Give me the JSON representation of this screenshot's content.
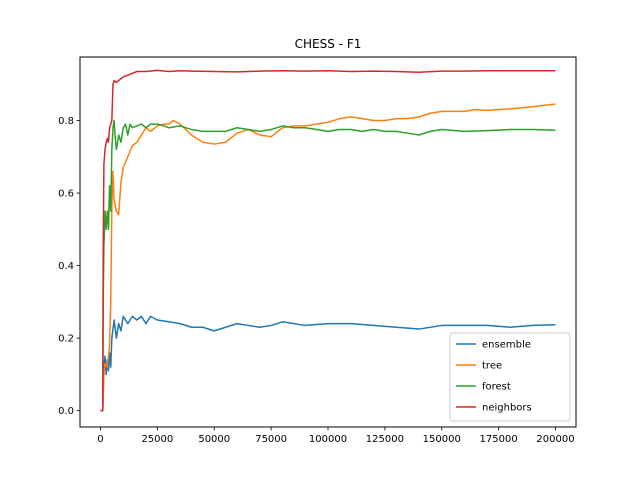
{
  "chart_data": {
    "type": "line",
    "title": "CHESS - F1",
    "xlabel": "",
    "ylabel": "",
    "xlim": [
      -9000,
      209000
    ],
    "ylim": [
      -0.045,
      0.975
    ],
    "xticks": [
      0,
      25000,
      50000,
      75000,
      100000,
      125000,
      150000,
      175000,
      200000
    ],
    "yticks": [
      0.0,
      0.2,
      0.4,
      0.6,
      0.8
    ],
    "ytick_labels": [
      "0.0",
      "0.2",
      "0.4",
      "0.6",
      "0.8"
    ],
    "grid": false,
    "legend_position": "lower-right",
    "series": [
      {
        "name": "ensemble",
        "color": "#1f77b4",
        "points": [
          [
            0,
            0.0
          ],
          [
            1000,
            0.0
          ],
          [
            1500,
            0.12
          ],
          [
            2000,
            0.15
          ],
          [
            2500,
            0.1
          ],
          [
            3000,
            0.14
          ],
          [
            3500,
            0.11
          ],
          [
            4000,
            0.16
          ],
          [
            4500,
            0.12
          ],
          [
            5000,
            0.2
          ],
          [
            6000,
            0.25
          ],
          [
            7000,
            0.2
          ],
          [
            8000,
            0.24
          ],
          [
            9000,
            0.22
          ],
          [
            10000,
            0.26
          ],
          [
            12000,
            0.24
          ],
          [
            14000,
            0.26
          ],
          [
            16000,
            0.25
          ],
          [
            18000,
            0.26
          ],
          [
            20000,
            0.24
          ],
          [
            22000,
            0.26
          ],
          [
            25000,
            0.25
          ],
          [
            30000,
            0.245
          ],
          [
            35000,
            0.24
          ],
          [
            40000,
            0.23
          ],
          [
            45000,
            0.23
          ],
          [
            50000,
            0.22
          ],
          [
            55000,
            0.23
          ],
          [
            60000,
            0.24
          ],
          [
            65000,
            0.235
          ],
          [
            70000,
            0.23
          ],
          [
            75000,
            0.235
          ],
          [
            80000,
            0.245
          ],
          [
            90000,
            0.235
          ],
          [
            100000,
            0.24
          ],
          [
            110000,
            0.24
          ],
          [
            120000,
            0.235
          ],
          [
            130000,
            0.23
          ],
          [
            140000,
            0.225
          ],
          [
            150000,
            0.235
          ],
          [
            160000,
            0.235
          ],
          [
            170000,
            0.235
          ],
          [
            180000,
            0.23
          ],
          [
            190000,
            0.235
          ],
          [
            200000,
            0.237
          ]
        ]
      },
      {
        "name": "tree",
        "color": "#ff7f0e",
        "points": [
          [
            0,
            0.0
          ],
          [
            1000,
            0.0
          ],
          [
            1500,
            0.1
          ],
          [
            2000,
            0.13
          ],
          [
            3000,
            0.12
          ],
          [
            4000,
            0.18
          ],
          [
            4500,
            0.3
          ],
          [
            5000,
            0.56
          ],
          [
            5500,
            0.66
          ],
          [
            6000,
            0.58
          ],
          [
            7000,
            0.55
          ],
          [
            8000,
            0.54
          ],
          [
            9000,
            0.63
          ],
          [
            10000,
            0.67
          ],
          [
            12000,
            0.7
          ],
          [
            14000,
            0.73
          ],
          [
            16000,
            0.74
          ],
          [
            18000,
            0.76
          ],
          [
            20000,
            0.78
          ],
          [
            22000,
            0.77
          ],
          [
            25000,
            0.785
          ],
          [
            28000,
            0.79
          ],
          [
            30000,
            0.79
          ],
          [
            32000,
            0.8
          ],
          [
            35000,
            0.79
          ],
          [
            40000,
            0.76
          ],
          [
            45000,
            0.74
          ],
          [
            50000,
            0.735
          ],
          [
            55000,
            0.74
          ],
          [
            60000,
            0.765
          ],
          [
            65000,
            0.775
          ],
          [
            70000,
            0.76
          ],
          [
            75000,
            0.755
          ],
          [
            80000,
            0.78
          ],
          [
            85000,
            0.785
          ],
          [
            90000,
            0.785
          ],
          [
            95000,
            0.79
          ],
          [
            100000,
            0.795
          ],
          [
            105000,
            0.805
          ],
          [
            110000,
            0.81
          ],
          [
            115000,
            0.805
          ],
          [
            120000,
            0.8
          ],
          [
            125000,
            0.8
          ],
          [
            130000,
            0.805
          ],
          [
            135000,
            0.805
          ],
          [
            140000,
            0.81
          ],
          [
            145000,
            0.82
          ],
          [
            150000,
            0.825
          ],
          [
            155000,
            0.825
          ],
          [
            160000,
            0.825
          ],
          [
            165000,
            0.83
          ],
          [
            170000,
            0.828
          ],
          [
            175000,
            0.83
          ],
          [
            180000,
            0.832
          ],
          [
            185000,
            0.835
          ],
          [
            190000,
            0.838
          ],
          [
            195000,
            0.842
          ],
          [
            200000,
            0.845
          ]
        ]
      },
      {
        "name": "forest",
        "color": "#2ca02c",
        "points": [
          [
            0,
            0.0
          ],
          [
            1000,
            0.0
          ],
          [
            1200,
            0.3
          ],
          [
            1500,
            0.45
          ],
          [
            2000,
            0.55
          ],
          [
            2500,
            0.5
          ],
          [
            3000,
            0.55
          ],
          [
            3500,
            0.5
          ],
          [
            4000,
            0.62
          ],
          [
            4500,
            0.55
          ],
          [
            5000,
            0.72
          ],
          [
            5500,
            0.78
          ],
          [
            6000,
            0.8
          ],
          [
            6500,
            0.75
          ],
          [
            7000,
            0.72
          ],
          [
            8000,
            0.76
          ],
          [
            9000,
            0.74
          ],
          [
            10000,
            0.78
          ],
          [
            11000,
            0.79
          ],
          [
            12000,
            0.76
          ],
          [
            13000,
            0.79
          ],
          [
            14000,
            0.78
          ],
          [
            16000,
            0.785
          ],
          [
            18000,
            0.79
          ],
          [
            20000,
            0.78
          ],
          [
            22000,
            0.79
          ],
          [
            25000,
            0.79
          ],
          [
            28000,
            0.785
          ],
          [
            30000,
            0.78
          ],
          [
            35000,
            0.785
          ],
          [
            40000,
            0.775
          ],
          [
            45000,
            0.77
          ],
          [
            50000,
            0.77
          ],
          [
            55000,
            0.77
          ],
          [
            60000,
            0.78
          ],
          [
            65000,
            0.775
          ],
          [
            70000,
            0.77
          ],
          [
            75000,
            0.775
          ],
          [
            80000,
            0.785
          ],
          [
            85000,
            0.78
          ],
          [
            90000,
            0.78
          ],
          [
            95000,
            0.775
          ],
          [
            100000,
            0.77
          ],
          [
            105000,
            0.775
          ],
          [
            110000,
            0.775
          ],
          [
            115000,
            0.77
          ],
          [
            120000,
            0.775
          ],
          [
            125000,
            0.77
          ],
          [
            130000,
            0.77
          ],
          [
            135000,
            0.765
          ],
          [
            140000,
            0.76
          ],
          [
            145000,
            0.77
          ],
          [
            150000,
            0.775
          ],
          [
            160000,
            0.77
          ],
          [
            170000,
            0.772
          ],
          [
            180000,
            0.775
          ],
          [
            190000,
            0.775
          ],
          [
            200000,
            0.773
          ]
        ]
      },
      {
        "name": "neighbors",
        "color": "#d62728",
        "points": [
          [
            0,
            0.0
          ],
          [
            1000,
            0.0
          ],
          [
            1200,
            0.45
          ],
          [
            1500,
            0.68
          ],
          [
            2000,
            0.72
          ],
          [
            2500,
            0.74
          ],
          [
            3000,
            0.75
          ],
          [
            3500,
            0.74
          ],
          [
            4000,
            0.78
          ],
          [
            4500,
            0.79
          ],
          [
            5000,
            0.8
          ],
          [
            5500,
            0.9
          ],
          [
            6000,
            0.91
          ],
          [
            7000,
            0.905
          ],
          [
            8000,
            0.91
          ],
          [
            9000,
            0.915
          ],
          [
            10000,
            0.92
          ],
          [
            12000,
            0.925
          ],
          [
            14000,
            0.93
          ],
          [
            16000,
            0.935
          ],
          [
            18000,
            0.935
          ],
          [
            20000,
            0.935
          ],
          [
            25000,
            0.938
          ],
          [
            30000,
            0.935
          ],
          [
            35000,
            0.937
          ],
          [
            40000,
            0.936
          ],
          [
            50000,
            0.935
          ],
          [
            60000,
            0.934
          ],
          [
            70000,
            0.936
          ],
          [
            80000,
            0.937
          ],
          [
            90000,
            0.936
          ],
          [
            100000,
            0.937
          ],
          [
            110000,
            0.935
          ],
          [
            120000,
            0.936
          ],
          [
            130000,
            0.935
          ],
          [
            140000,
            0.933
          ],
          [
            150000,
            0.936
          ],
          [
            160000,
            0.936
          ],
          [
            170000,
            0.937
          ],
          [
            180000,
            0.937
          ],
          [
            190000,
            0.937
          ],
          [
            200000,
            0.937
          ]
        ]
      }
    ]
  }
}
